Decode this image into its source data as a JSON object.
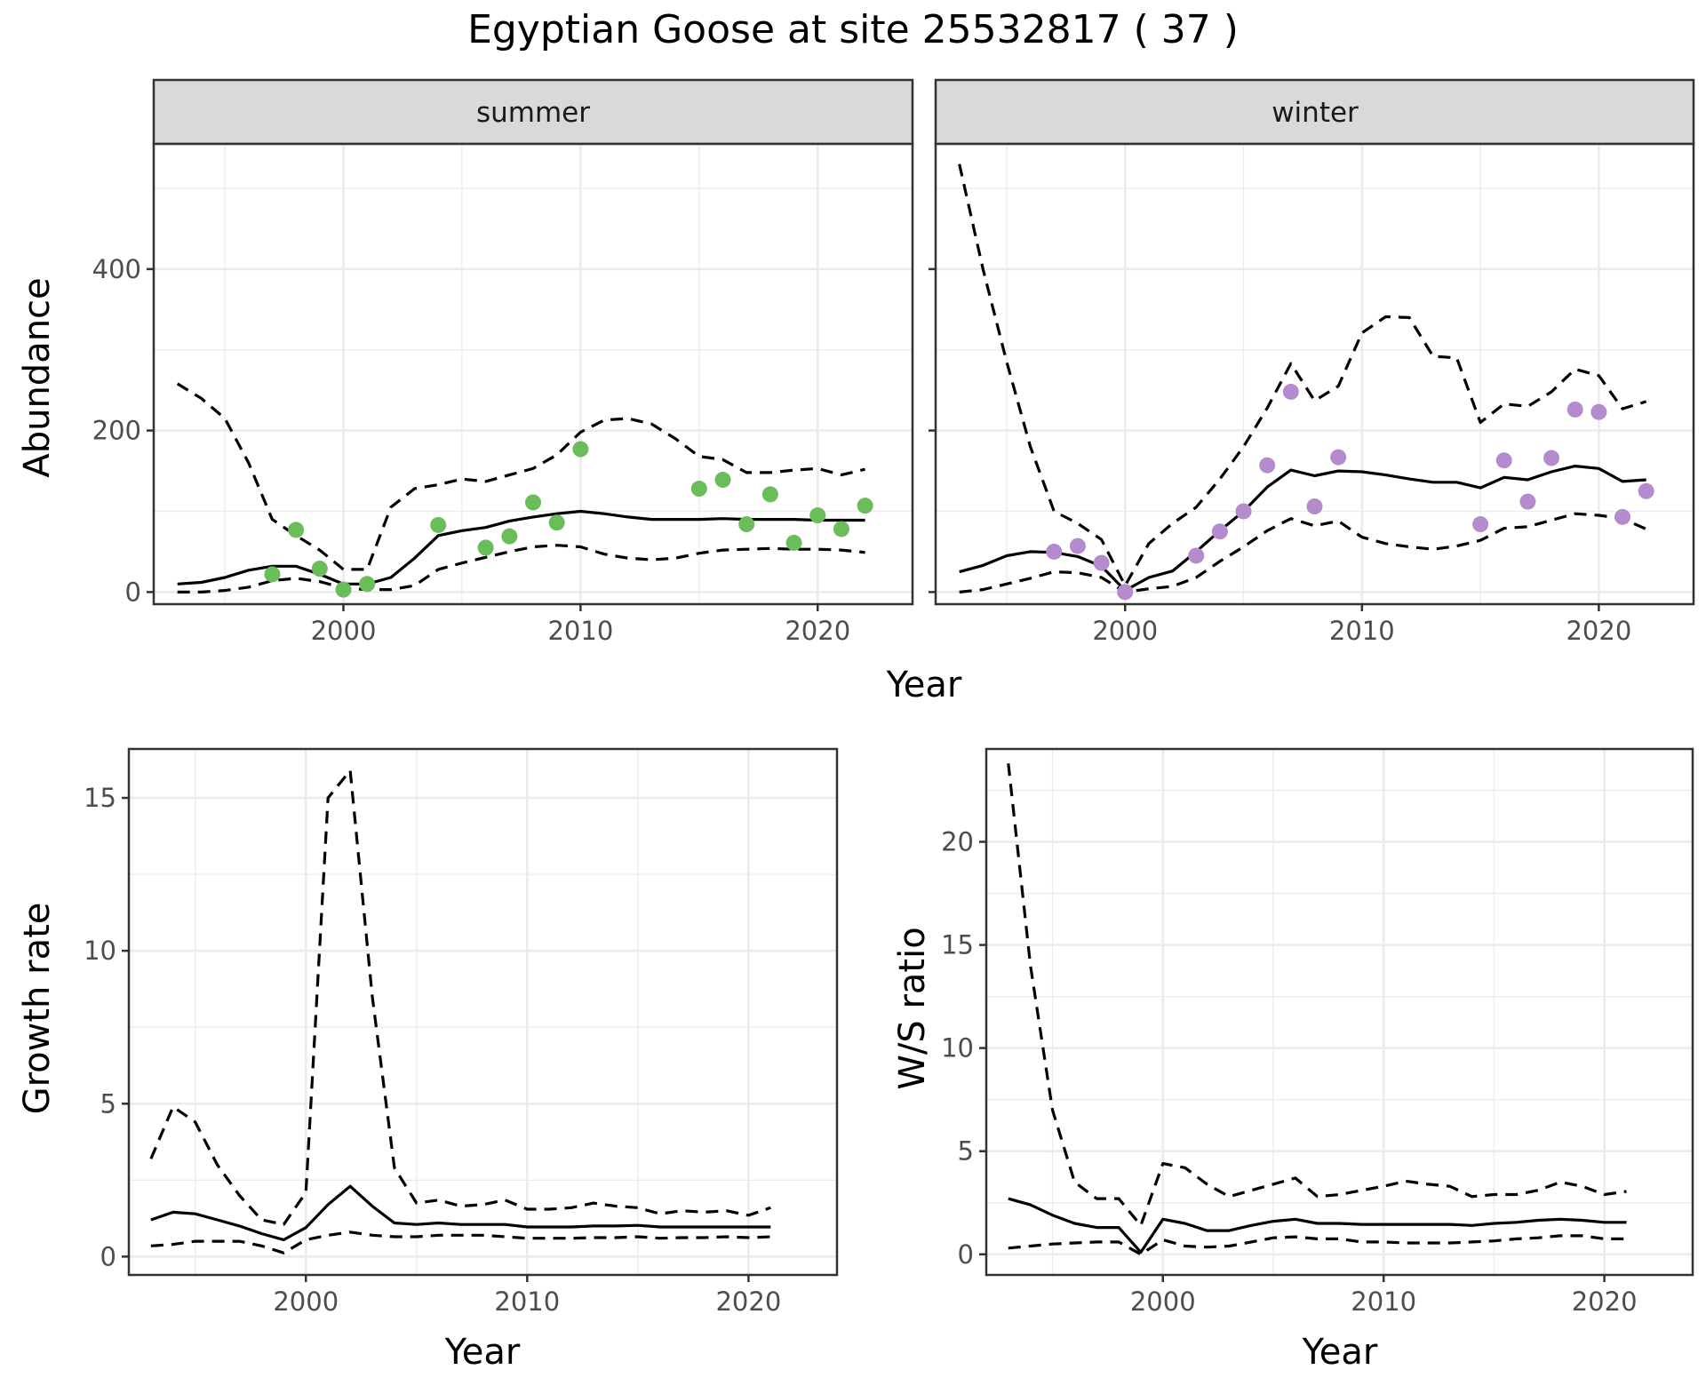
{
  "title": "Egyptian Goose at site 25532817 ( 37 )",
  "colors": {
    "summer_points": "#6abd5a",
    "winter_points": "#b48ccd",
    "line": "#000000",
    "strip_fill": "#d9d9d9",
    "grid": "#ebebeb"
  },
  "chart_data": [
    {
      "type": "line",
      "panel": "summer",
      "strip_label": "summer",
      "ylabel": "Abundance",
      "xlabel": "Year",
      "grid": true,
      "xlim": [
        1992,
        2024
      ],
      "ylim": [
        -15,
        555
      ],
      "xticks": [
        2000,
        2010,
        2020
      ],
      "yticks": [
        0,
        200,
        400
      ],
      "show_y_ticks": true,
      "series": [
        {
          "role": "estimate",
          "dash": false,
          "x": [
            1993,
            1994,
            1995,
            1996,
            1997,
            1998,
            1999,
            2000,
            2001,
            2002,
            2003,
            2004,
            2005,
            2006,
            2007,
            2008,
            2009,
            2010,
            2011,
            2012,
            2013,
            2014,
            2015,
            2016,
            2017,
            2018,
            2019,
            2020,
            2021,
            2022
          ],
          "y": [
            10,
            12,
            18,
            27,
            32,
            32,
            22,
            10,
            10,
            18,
            42,
            70,
            76,
            80,
            88,
            93,
            97,
            100,
            97,
            93,
            90,
            90,
            90,
            91,
            90,
            90,
            90,
            89,
            89,
            89
          ]
        },
        {
          "role": "upper",
          "dash": true,
          "x": [
            1993,
            1994,
            1995,
            1996,
            1997,
            1998,
            1999,
            2000,
            2001,
            2002,
            2003,
            2004,
            2005,
            2006,
            2007,
            2008,
            2009,
            2010,
            2011,
            2012,
            2013,
            2014,
            2015,
            2016,
            2017,
            2018,
            2019,
            2020,
            2021,
            2022
          ],
          "y": [
            258,
            240,
            215,
            160,
            90,
            70,
            52,
            28,
            28,
            105,
            128,
            133,
            140,
            137,
            145,
            153,
            170,
            198,
            213,
            215,
            208,
            190,
            168,
            164,
            148,
            148,
            151,
            153,
            145,
            152
          ]
        },
        {
          "role": "lower",
          "dash": true,
          "x": [
            1993,
            1994,
            1995,
            1996,
            1997,
            1998,
            1999,
            2000,
            2001,
            2002,
            2003,
            2004,
            2005,
            2006,
            2007,
            2008,
            2009,
            2010,
            2011,
            2012,
            2013,
            2014,
            2015,
            2016,
            2017,
            2018,
            2019,
            2020,
            2021,
            2022
          ],
          "y": [
            0,
            0,
            2,
            6,
            14,
            17,
            13,
            5,
            3,
            3,
            8,
            28,
            36,
            43,
            50,
            56,
            58,
            56,
            47,
            42,
            40,
            42,
            48,
            52,
            53,
            54,
            53,
            53,
            52,
            49
          ]
        }
      ],
      "points": {
        "x": [
          1997,
          1998,
          1999,
          2000,
          2001,
          2004,
          2006,
          2007,
          2008,
          2009,
          2010,
          2015,
          2016,
          2017,
          2018,
          2019,
          2020,
          2021,
          2022
        ],
        "y": [
          22,
          77,
          29,
          3,
          10,
          83,
          55,
          69,
          111,
          86,
          177,
          128,
          139,
          84,
          121,
          61,
          95,
          78,
          107
        ]
      }
    },
    {
      "type": "line",
      "panel": "winter",
      "strip_label": "winter",
      "ylabel": "",
      "xlabel": "Year",
      "grid": true,
      "xlim": [
        1992,
        2024
      ],
      "ylim": [
        -15,
        555
      ],
      "xticks": [
        2000,
        2010,
        2020
      ],
      "yticks": [
        0,
        200,
        400
      ],
      "show_y_ticks": false,
      "series": [
        {
          "role": "estimate",
          "dash": false,
          "x": [
            1993,
            1994,
            1995,
            1996,
            1997,
            1998,
            1999,
            2000,
            2001,
            2002,
            2003,
            2004,
            2005,
            2006,
            2007,
            2008,
            2009,
            2010,
            2011,
            2012,
            2013,
            2014,
            2015,
            2016,
            2017,
            2018,
            2019,
            2020,
            2021,
            2022
          ],
          "y": [
            25,
            33,
            45,
            50,
            49,
            44,
            32,
            2,
            18,
            26,
            50,
            76,
            100,
            130,
            151,
            144,
            150,
            149,
            145,
            140,
            136,
            136,
            129,
            142,
            139,
            149,
            156,
            153,
            137,
            139
          ]
        },
        {
          "role": "upper",
          "dash": true,
          "x": [
            1993,
            1994,
            1995,
            1996,
            1997,
            1998,
            1999,
            2000,
            2001,
            2002,
            2003,
            2004,
            2005,
            2006,
            2007,
            2008,
            2009,
            2010,
            2011,
            2012,
            2013,
            2014,
            2015,
            2016,
            2017,
            2018,
            2019,
            2020,
            2021,
            2022
          ],
          "y": [
            530,
            400,
            285,
            180,
            100,
            85,
            65,
            8,
            60,
            85,
            105,
            140,
            180,
            228,
            283,
            237,
            255,
            321,
            341,
            340,
            292,
            290,
            210,
            233,
            230,
            248,
            276,
            268,
            227,
            236
          ]
        },
        {
          "role": "lower",
          "dash": true,
          "x": [
            1993,
            1994,
            1995,
            1996,
            1997,
            1998,
            1999,
            2000,
            2001,
            2002,
            2003,
            2004,
            2005,
            2006,
            2007,
            2008,
            2009,
            2010,
            2011,
            2012,
            2013,
            2014,
            2015,
            2016,
            2017,
            2018,
            2019,
            2020,
            2021,
            2022
          ],
          "y": [
            0,
            3,
            10,
            17,
            25,
            24,
            18,
            0,
            4,
            7,
            18,
            38,
            56,
            76,
            91,
            82,
            88,
            68,
            60,
            56,
            53,
            57,
            64,
            79,
            81,
            89,
            97,
            95,
            91,
            78
          ]
        }
      ],
      "points": {
        "x": [
          1997,
          1998,
          1999,
          2000,
          2003,
          2004,
          2005,
          2006,
          2007,
          2008,
          2009,
          2015,
          2016,
          2017,
          2018,
          2019,
          2020,
          2021,
          2022
        ],
        "y": [
          50,
          57,
          36,
          0,
          45,
          75,
          100,
          157,
          248,
          106,
          167,
          84,
          163,
          112,
          166,
          226,
          223,
          93,
          125
        ]
      }
    },
    {
      "type": "line",
      "panel": "growth",
      "ylabel": "Growth rate",
      "xlabel": "Year",
      "grid": true,
      "xlim": [
        1992,
        2024
      ],
      "ylim": [
        -0.6,
        16.6
      ],
      "xticks": [
        2000,
        2010,
        2020
      ],
      "yticks": [
        0,
        5,
        10,
        15
      ],
      "show_y_ticks": true,
      "series": [
        {
          "role": "estimate",
          "dash": false,
          "x": [
            1993,
            1994,
            1995,
            1996,
            1997,
            1998,
            1999,
            2000,
            2001,
            2002,
            2003,
            2004,
            2005,
            2006,
            2007,
            2008,
            2009,
            2010,
            2011,
            2012,
            2013,
            2014,
            2015,
            2016,
            2017,
            2018,
            2019,
            2020,
            2021
          ],
          "y": [
            1.2,
            1.45,
            1.4,
            1.2,
            1.0,
            0.75,
            0.55,
            0.95,
            1.7,
            2.3,
            1.65,
            1.1,
            1.05,
            1.1,
            1.05,
            1.05,
            1.05,
            0.97,
            0.97,
            0.97,
            1.0,
            1.0,
            1.02,
            0.97,
            0.97,
            0.97,
            0.97,
            0.97,
            0.97
          ]
        },
        {
          "role": "upper",
          "dash": true,
          "x": [
            1993,
            1994,
            1995,
            1996,
            1997,
            1998,
            1999,
            2000,
            2001,
            2002,
            2003,
            2004,
            2005,
            2006,
            2007,
            2008,
            2009,
            2010,
            2011,
            2012,
            2013,
            2014,
            2015,
            2016,
            2017,
            2018,
            2019,
            2020,
            2021
          ],
          "y": [
            3.2,
            4.9,
            4.4,
            3.0,
            2.0,
            1.2,
            1.05,
            2.1,
            15.0,
            15.9,
            8.5,
            2.9,
            1.75,
            1.85,
            1.65,
            1.7,
            1.85,
            1.55,
            1.55,
            1.6,
            1.75,
            1.65,
            1.6,
            1.4,
            1.5,
            1.45,
            1.5,
            1.35,
            1.6
          ]
        },
        {
          "role": "lower",
          "dash": true,
          "x": [
            1993,
            1994,
            1995,
            1996,
            1997,
            1998,
            1999,
            2000,
            2001,
            2002,
            2003,
            2004,
            2005,
            2006,
            2007,
            2008,
            2009,
            2010,
            2011,
            2012,
            2013,
            2014,
            2015,
            2016,
            2017,
            2018,
            2019,
            2020,
            2021
          ],
          "y": [
            0.35,
            0.4,
            0.5,
            0.5,
            0.5,
            0.35,
            0.12,
            0.55,
            0.7,
            0.8,
            0.7,
            0.65,
            0.65,
            0.7,
            0.7,
            0.7,
            0.65,
            0.6,
            0.6,
            0.6,
            0.62,
            0.62,
            0.65,
            0.6,
            0.62,
            0.62,
            0.65,
            0.62,
            0.65
          ]
        }
      ]
    },
    {
      "type": "line",
      "panel": "ws_ratio",
      "ylabel": "W/S ratio",
      "xlabel": "Year",
      "grid": true,
      "xlim": [
        1992,
        2024
      ],
      "ylim": [
        -1.0,
        24.5
      ],
      "xticks": [
        2000,
        2010,
        2020
      ],
      "yticks": [
        0,
        5,
        10,
        15,
        20
      ],
      "show_y_ticks": true,
      "series": [
        {
          "role": "estimate",
          "dash": false,
          "x": [
            1993,
            1994,
            1995,
            1996,
            1997,
            1998,
            1999,
            2000,
            2001,
            2002,
            2003,
            2004,
            2005,
            2006,
            2007,
            2008,
            2009,
            2010,
            2011,
            2012,
            2013,
            2014,
            2015,
            2016,
            2017,
            2018,
            2019,
            2020,
            2021
          ],
          "y": [
            2.7,
            2.4,
            1.9,
            1.5,
            1.3,
            1.3,
            0.1,
            1.7,
            1.5,
            1.15,
            1.15,
            1.4,
            1.6,
            1.7,
            1.5,
            1.5,
            1.45,
            1.45,
            1.45,
            1.45,
            1.45,
            1.4,
            1.5,
            1.55,
            1.65,
            1.7,
            1.65,
            1.55,
            1.55
          ]
        },
        {
          "role": "upper",
          "dash": true,
          "x": [
            1993,
            1994,
            1995,
            1996,
            1997,
            1998,
            1999,
            2000,
            2001,
            2002,
            2003,
            2004,
            2005,
            2006,
            2007,
            2008,
            2009,
            2010,
            2011,
            2012,
            2013,
            2014,
            2015,
            2016,
            2017,
            2018,
            2019,
            2020,
            2021
          ],
          "y": [
            23.8,
            14.0,
            7.0,
            3.5,
            2.7,
            2.7,
            1.4,
            4.4,
            4.2,
            3.4,
            2.8,
            3.1,
            3.4,
            3.7,
            2.8,
            2.9,
            3.1,
            3.3,
            3.55,
            3.4,
            3.3,
            2.8,
            2.9,
            2.9,
            3.1,
            3.5,
            3.3,
            2.9,
            3.05
          ]
        },
        {
          "role": "lower",
          "dash": true,
          "x": [
            1993,
            1994,
            1995,
            1996,
            1997,
            1998,
            1999,
            2000,
            2001,
            2002,
            2003,
            2004,
            2005,
            2006,
            2007,
            2008,
            2009,
            2010,
            2011,
            2012,
            2013,
            2014,
            2015,
            2016,
            2017,
            2018,
            2019,
            2020,
            2021
          ],
          "y": [
            0.3,
            0.4,
            0.5,
            0.55,
            0.6,
            0.6,
            0.0,
            0.7,
            0.4,
            0.35,
            0.4,
            0.6,
            0.8,
            0.85,
            0.75,
            0.75,
            0.6,
            0.6,
            0.55,
            0.55,
            0.55,
            0.6,
            0.65,
            0.75,
            0.8,
            0.9,
            0.9,
            0.75,
            0.75
          ]
        }
      ]
    }
  ]
}
